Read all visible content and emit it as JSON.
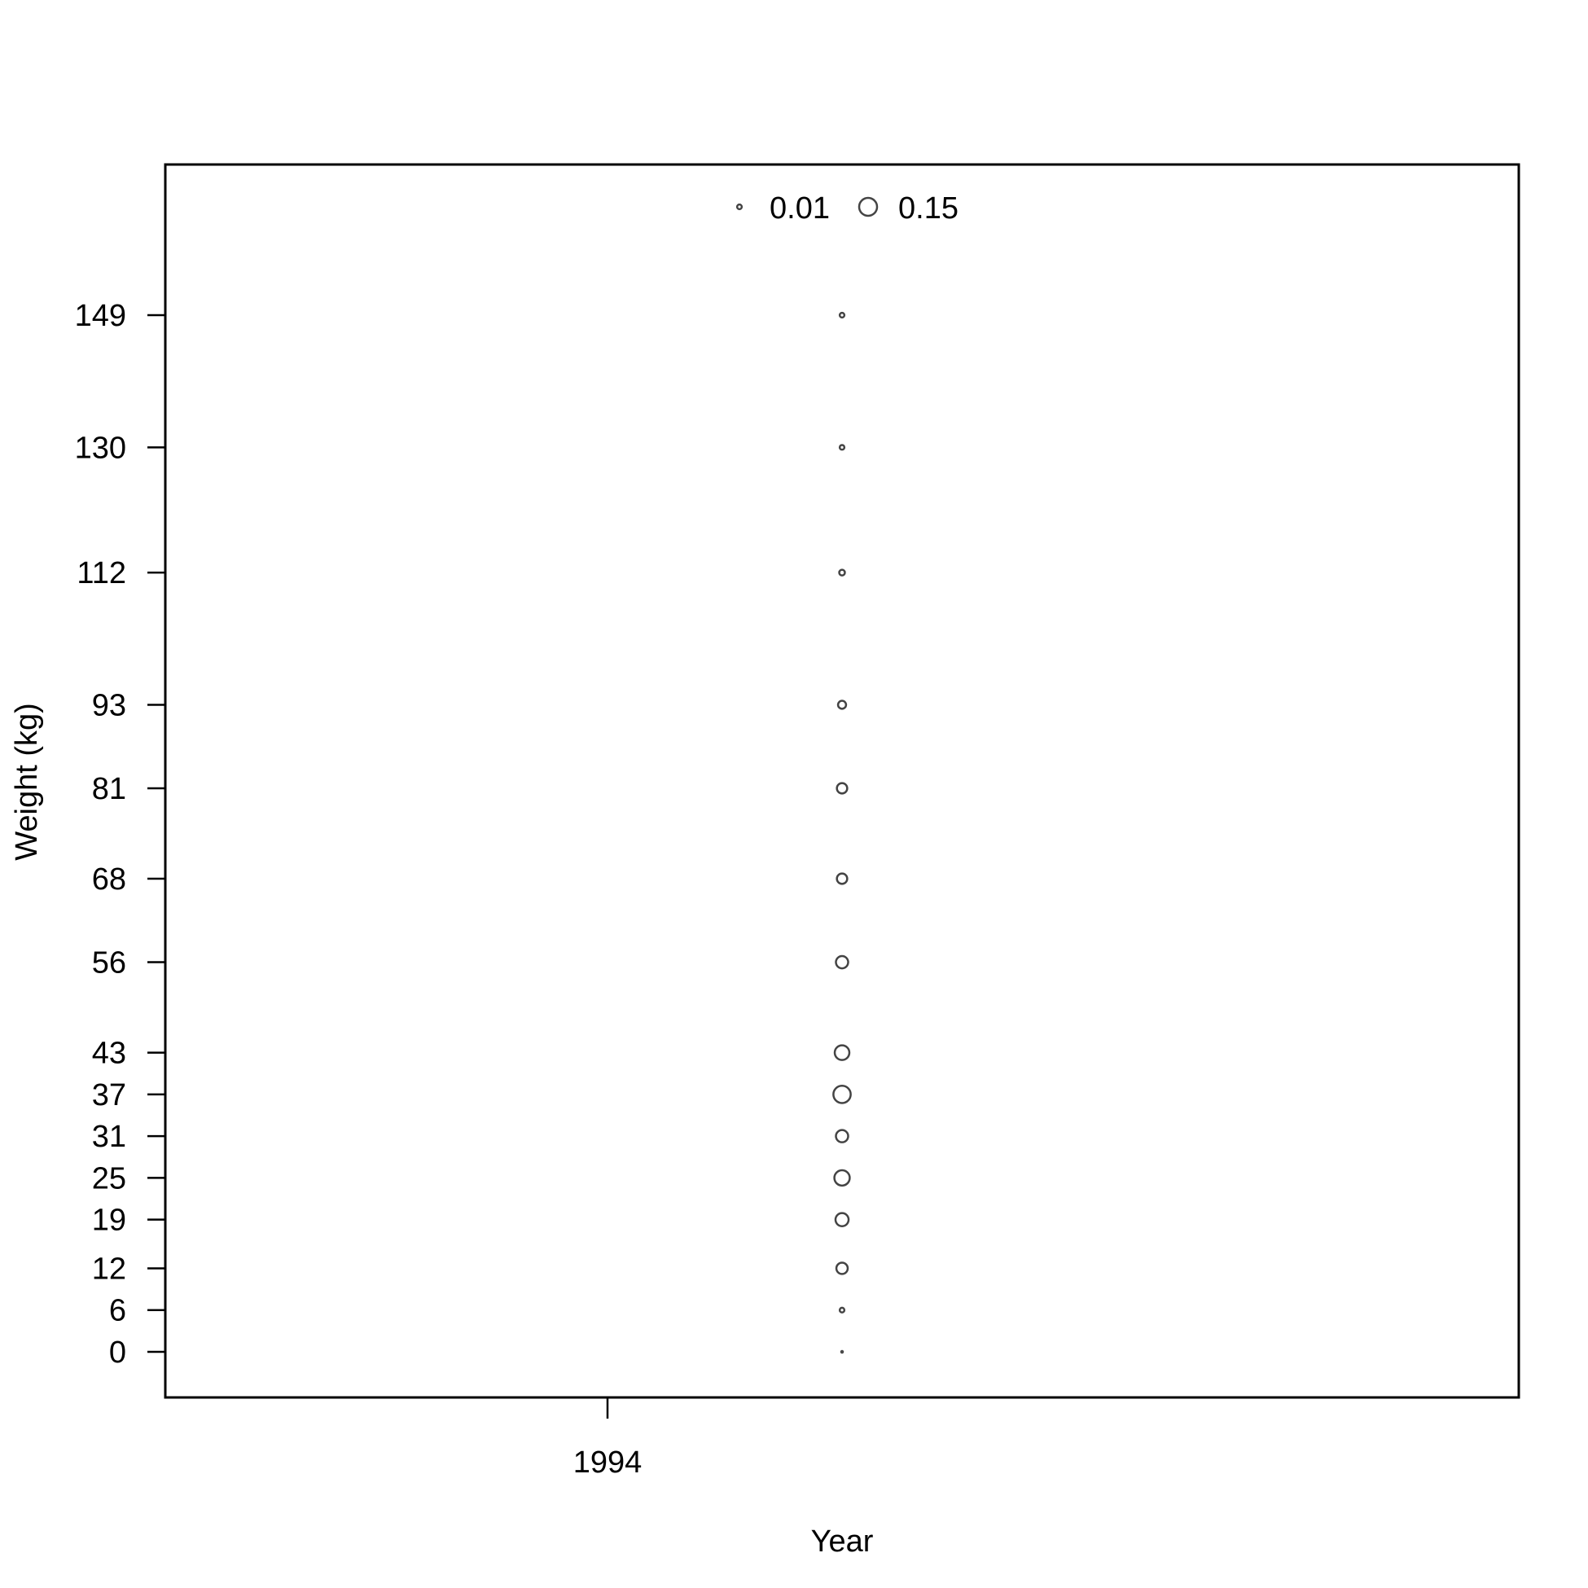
{
  "chart_data": {
    "type": "scatter",
    "title": "",
    "xlabel": "Year",
    "ylabel": "Weight (kg)",
    "x_ticks": [
      "1994"
    ],
    "y_ticks": [
      0,
      6,
      12,
      19,
      25,
      31,
      37,
      43,
      56,
      68,
      81,
      93,
      112,
      130,
      149
    ],
    "legend": {
      "placement": "top-center",
      "entries": [
        {
          "label": "0.01",
          "value": 0.01
        },
        {
          "label": "0.15",
          "value": 0.15
        }
      ]
    },
    "series": [
      {
        "x": [
          1994,
          1994,
          1994,
          1994,
          1994,
          1994,
          1994,
          1994,
          1994,
          1994,
          1994,
          1994,
          1994,
          1994,
          1994
        ],
        "y": [
          0,
          6,
          12,
          19,
          25,
          31,
          37,
          43,
          56,
          68,
          81,
          93,
          112,
          130,
          149
        ],
        "size": [
          0.001,
          0.01,
          0.06,
          0.08,
          0.11,
          0.07,
          0.14,
          0.1,
          0.07,
          0.05,
          0.05,
          0.03,
          0.015,
          0.01,
          0.01
        ]
      }
    ],
    "grid": false,
    "colors": {
      "marker_stroke": "#444444",
      "axis": "#000000"
    }
  }
}
